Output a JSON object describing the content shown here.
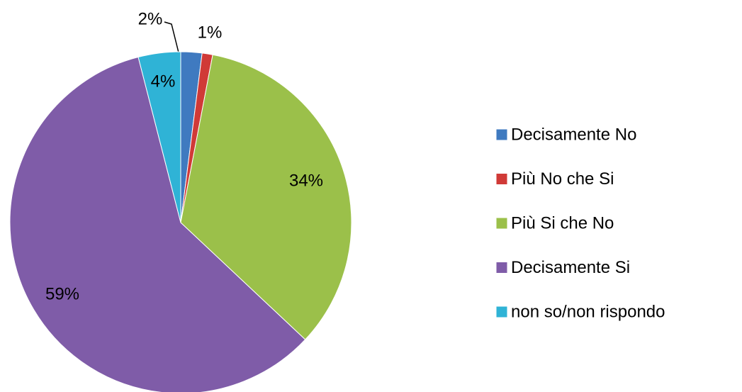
{
  "chart_data": {
    "type": "pie",
    "categories": [
      "Decisamente No",
      "Più No che Si",
      "Più Si che No",
      "Decisamente Si",
      "non so/non rispondo"
    ],
    "values": [
      2,
      1,
      34,
      59,
      4
    ],
    "value_labels": [
      "2%",
      "1%",
      "34%",
      "59%",
      "4%"
    ],
    "colors": [
      "#3f7ac0",
      "#d03a37",
      "#9bc04a",
      "#7f5ca8",
      "#2fb3d6"
    ],
    "legend": "right"
  }
}
